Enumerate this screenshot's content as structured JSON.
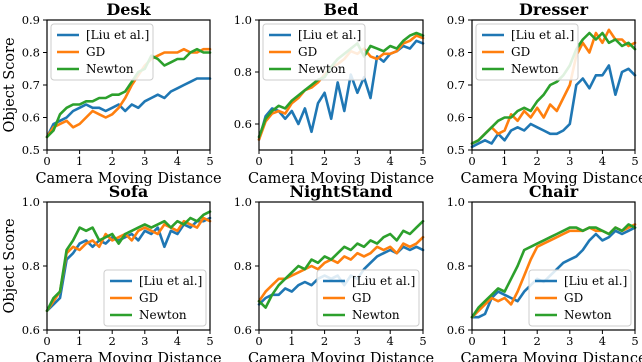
{
  "colors": {
    "liu": "#1f77b4",
    "gd": "#ff7f0e",
    "newton": "#2ca02c"
  },
  "chart_data": [
    {
      "type": "line",
      "title": "Desk",
      "xlabel": "Camera Moving Distance",
      "ylabel": "Object Score",
      "xlim": [
        0,
        5
      ],
      "ylim": [
        0.5,
        0.9
      ],
      "xticks": [
        "0",
        "1",
        "2",
        "3",
        "4",
        "5"
      ],
      "yticks": [
        "0.5",
        "0.6",
        "0.7",
        "0.8",
        "0.9"
      ],
      "legend": "top-left",
      "x": [
        0,
        0.2,
        0.4,
        0.6,
        0.8,
        1.0,
        1.2,
        1.4,
        1.6,
        1.8,
        2.0,
        2.2,
        2.4,
        2.6,
        2.8,
        3.0,
        3.2,
        3.4,
        3.6,
        3.8,
        4.0,
        4.2,
        4.4,
        4.6,
        4.8,
        5.0
      ],
      "series": [
        {
          "name": "[Liu et al.]",
          "values": [
            0.54,
            0.58,
            0.59,
            0.6,
            0.62,
            0.63,
            0.64,
            0.63,
            0.63,
            0.62,
            0.63,
            0.64,
            0.62,
            0.64,
            0.63,
            0.65,
            0.66,
            0.67,
            0.66,
            0.68,
            0.69,
            0.7,
            0.71,
            0.72,
            0.72,
            0.72
          ]
        },
        {
          "name": "GD",
          "values": [
            0.54,
            0.57,
            0.58,
            0.59,
            0.57,
            0.58,
            0.6,
            0.62,
            0.61,
            0.6,
            0.61,
            0.63,
            0.66,
            0.7,
            0.73,
            0.76,
            0.78,
            0.79,
            0.8,
            0.8,
            0.8,
            0.81,
            0.8,
            0.8,
            0.81,
            0.81
          ]
        },
        {
          "name": "Newton",
          "values": [
            0.54,
            0.56,
            0.61,
            0.63,
            0.64,
            0.64,
            0.65,
            0.65,
            0.66,
            0.66,
            0.67,
            0.67,
            0.68,
            0.71,
            0.74,
            0.75,
            0.79,
            0.78,
            0.76,
            0.77,
            0.78,
            0.78,
            0.8,
            0.81,
            0.8,
            0.8
          ]
        }
      ]
    },
    {
      "type": "line",
      "title": "Bed",
      "xlabel": "Camera Moving Distance",
      "ylabel": "",
      "xlim": [
        0,
        5
      ],
      "ylim": [
        0.5,
        1.0
      ],
      "xticks": [
        "0",
        "1",
        "2",
        "3",
        "4",
        "5"
      ],
      "yticks": [
        "0.6",
        "0.8",
        "1.0"
      ],
      "legend": "top-left",
      "x": [
        0,
        0.2,
        0.4,
        0.6,
        0.8,
        1.0,
        1.2,
        1.4,
        1.6,
        1.8,
        2.0,
        2.2,
        2.4,
        2.6,
        2.8,
        3.0,
        3.2,
        3.4,
        3.6,
        3.8,
        4.0,
        4.2,
        4.4,
        4.6,
        4.8,
        5.0
      ],
      "series": [
        {
          "name": "[Liu et al.]",
          "values": [
            0.54,
            0.63,
            0.66,
            0.65,
            0.62,
            0.65,
            0.6,
            0.66,
            0.57,
            0.68,
            0.72,
            0.62,
            0.76,
            0.65,
            0.79,
            0.72,
            0.78,
            0.7,
            0.86,
            0.84,
            0.87,
            0.88,
            0.9,
            0.89,
            0.92,
            0.91
          ]
        },
        {
          "name": "GD",
          "values": [
            0.54,
            0.61,
            0.64,
            0.65,
            0.64,
            0.68,
            0.7,
            0.73,
            0.74,
            0.76,
            0.79,
            0.82,
            0.83,
            0.85,
            0.88,
            0.87,
            0.89,
            0.86,
            0.85,
            0.87,
            0.87,
            0.88,
            0.91,
            0.92,
            0.94,
            0.93
          ]
        },
        {
          "name": "Newton",
          "values": [
            0.55,
            0.62,
            0.65,
            0.67,
            0.66,
            0.69,
            0.71,
            0.73,
            0.75,
            0.77,
            0.78,
            0.82,
            0.85,
            0.87,
            0.89,
            0.91,
            0.86,
            0.9,
            0.89,
            0.88,
            0.9,
            0.89,
            0.92,
            0.94,
            0.95,
            0.94
          ]
        }
      ]
    },
    {
      "type": "line",
      "title": "Dresser",
      "xlabel": "Camera Moving Distance",
      "ylabel": "",
      "xlim": [
        0,
        5
      ],
      "ylim": [
        0.5,
        0.9
      ],
      "xticks": [
        "0",
        "1",
        "2",
        "3",
        "4",
        "5"
      ],
      "yticks": [
        "0.5",
        "0.6",
        "0.7",
        "0.8",
        "0.9"
      ],
      "legend": "top-left",
      "x": [
        0,
        0.2,
        0.4,
        0.6,
        0.8,
        1.0,
        1.2,
        1.4,
        1.6,
        1.8,
        2.0,
        2.2,
        2.4,
        2.6,
        2.8,
        3.0,
        3.2,
        3.4,
        3.6,
        3.8,
        4.0,
        4.2,
        4.4,
        4.6,
        4.8,
        5.0
      ],
      "series": [
        {
          "name": "[Liu et al.]",
          "values": [
            0.51,
            0.52,
            0.53,
            0.52,
            0.55,
            0.53,
            0.56,
            0.57,
            0.56,
            0.58,
            0.57,
            0.56,
            0.55,
            0.55,
            0.56,
            0.58,
            0.7,
            0.72,
            0.69,
            0.73,
            0.73,
            0.76,
            0.67,
            0.74,
            0.75,
            0.73
          ]
        },
        {
          "name": "GD",
          "values": [
            0.52,
            0.53,
            0.55,
            0.57,
            0.55,
            0.56,
            0.61,
            0.59,
            0.62,
            0.6,
            0.63,
            0.6,
            0.64,
            0.62,
            0.66,
            0.7,
            0.79,
            0.83,
            0.8,
            0.86,
            0.83,
            0.87,
            0.84,
            0.84,
            0.82,
            0.83
          ]
        },
        {
          "name": "Newton",
          "values": [
            0.52,
            0.53,
            0.55,
            0.57,
            0.59,
            0.6,
            0.6,
            0.62,
            0.63,
            0.62,
            0.65,
            0.67,
            0.7,
            0.71,
            0.73,
            0.76,
            0.81,
            0.84,
            0.86,
            0.84,
            0.86,
            0.83,
            0.84,
            0.82,
            0.83,
            0.81
          ]
        }
      ]
    },
    {
      "type": "line",
      "title": "Sofa",
      "xlabel": "Camera Moving Distance",
      "ylabel": "Object Score",
      "xlim": [
        0,
        5
      ],
      "ylim": [
        0.6,
        1.0
      ],
      "xticks": [
        "0",
        "1",
        "2",
        "3",
        "4",
        "5"
      ],
      "yticks": [
        "0.6",
        "0.8",
        "1.0"
      ],
      "legend": "bottom-right",
      "x": [
        0,
        0.2,
        0.4,
        0.6,
        0.8,
        1.0,
        1.2,
        1.4,
        1.6,
        1.8,
        2.0,
        2.2,
        2.4,
        2.6,
        2.8,
        3.0,
        3.2,
        3.4,
        3.6,
        3.8,
        4.0,
        4.2,
        4.4,
        4.6,
        4.8,
        5.0
      ],
      "series": [
        {
          "name": "[Liu et al.]",
          "values": [
            0.66,
            0.68,
            0.7,
            0.82,
            0.84,
            0.87,
            0.88,
            0.86,
            0.88,
            0.87,
            0.89,
            0.88,
            0.89,
            0.9,
            0.88,
            0.91,
            0.9,
            0.92,
            0.86,
            0.91,
            0.9,
            0.93,
            0.92,
            0.94,
            0.94,
            0.95
          ]
        },
        {
          "name": "GD",
          "values": [
            0.66,
            0.69,
            0.72,
            0.84,
            0.86,
            0.85,
            0.87,
            0.88,
            0.86,
            0.9,
            0.88,
            0.89,
            0.9,
            0.88,
            0.91,
            0.92,
            0.91,
            0.9,
            0.93,
            0.92,
            0.91,
            0.94,
            0.93,
            0.92,
            0.95,
            0.94
          ]
        },
        {
          "name": "Newton",
          "values": [
            0.66,
            0.7,
            0.72,
            0.85,
            0.88,
            0.92,
            0.91,
            0.92,
            0.88,
            0.89,
            0.9,
            0.87,
            0.9,
            0.91,
            0.92,
            0.93,
            0.92,
            0.93,
            0.94,
            0.92,
            0.94,
            0.93,
            0.95,
            0.94,
            0.96,
            0.97
          ]
        }
      ]
    },
    {
      "type": "line",
      "title": "NightStand",
      "xlabel": "Camera Moving Distance",
      "ylabel": "",
      "xlim": [
        0,
        5
      ],
      "ylim": [
        0.6,
        1.0
      ],
      "xticks": [
        "0",
        "1",
        "2",
        "3",
        "4",
        "5"
      ],
      "yticks": [
        "0.6",
        "0.8",
        "1.0"
      ],
      "legend": "bottom-right",
      "x": [
        0,
        0.2,
        0.4,
        0.6,
        0.8,
        1.0,
        1.2,
        1.4,
        1.6,
        1.8,
        2.0,
        2.2,
        2.4,
        2.6,
        2.8,
        3.0,
        3.2,
        3.4,
        3.6,
        3.8,
        4.0,
        4.2,
        4.4,
        4.6,
        4.8,
        5.0
      ],
      "series": [
        {
          "name": "[Liu et al.]",
          "values": [
            0.68,
            0.7,
            0.71,
            0.71,
            0.73,
            0.72,
            0.74,
            0.75,
            0.74,
            0.76,
            0.77,
            0.76,
            0.77,
            0.74,
            0.77,
            0.76,
            0.79,
            0.81,
            0.83,
            0.84,
            0.85,
            0.84,
            0.86,
            0.85,
            0.86,
            0.85
          ]
        },
        {
          "name": "GD",
          "values": [
            0.69,
            0.72,
            0.74,
            0.76,
            0.76,
            0.77,
            0.78,
            0.79,
            0.8,
            0.79,
            0.81,
            0.82,
            0.81,
            0.83,
            0.82,
            0.84,
            0.83,
            0.84,
            0.86,
            0.85,
            0.86,
            0.84,
            0.87,
            0.86,
            0.87,
            0.89
          ]
        },
        {
          "name": "Newton",
          "values": [
            0.69,
            0.67,
            0.71,
            0.74,
            0.76,
            0.78,
            0.8,
            0.79,
            0.82,
            0.81,
            0.83,
            0.82,
            0.84,
            0.86,
            0.85,
            0.87,
            0.86,
            0.88,
            0.87,
            0.89,
            0.9,
            0.88,
            0.91,
            0.9,
            0.92,
            0.94
          ]
        }
      ]
    },
    {
      "type": "line",
      "title": "Chair",
      "xlabel": "Camera Moving Distance",
      "ylabel": "",
      "xlim": [
        0,
        5
      ],
      "ylim": [
        0.6,
        1.0
      ],
      "xticks": [
        "0",
        "1",
        "2",
        "3",
        "4",
        "5"
      ],
      "yticks": [
        "0.6",
        "0.8",
        "1.0"
      ],
      "legend": "bottom-right",
      "x": [
        0,
        0.2,
        0.4,
        0.6,
        0.8,
        1.0,
        1.2,
        1.4,
        1.6,
        1.8,
        2.0,
        2.2,
        2.4,
        2.6,
        2.8,
        3.0,
        3.2,
        3.4,
        3.6,
        3.8,
        4.0,
        4.2,
        4.4,
        4.6,
        4.8,
        5.0
      ],
      "series": [
        {
          "name": "[Liu et al.]",
          "values": [
            0.64,
            0.64,
            0.65,
            0.7,
            0.72,
            0.71,
            0.7,
            0.69,
            0.72,
            0.74,
            0.76,
            0.75,
            0.77,
            0.79,
            0.81,
            0.82,
            0.83,
            0.85,
            0.88,
            0.9,
            0.88,
            0.89,
            0.91,
            0.9,
            0.91,
            0.92
          ]
        },
        {
          "name": "GD",
          "values": [
            0.64,
            0.66,
            0.68,
            0.7,
            0.69,
            0.7,
            0.68,
            0.72,
            0.77,
            0.82,
            0.86,
            0.87,
            0.88,
            0.89,
            0.9,
            0.91,
            0.91,
            0.91,
            0.92,
            0.91,
            0.91,
            0.9,
            0.92,
            0.91,
            0.92,
            0.93
          ]
        },
        {
          "name": "Newton",
          "values": [
            0.64,
            0.67,
            0.69,
            0.71,
            0.73,
            0.72,
            0.76,
            0.8,
            0.85,
            0.86,
            0.87,
            0.88,
            0.89,
            0.9,
            0.91,
            0.92,
            0.92,
            0.91,
            0.92,
            0.92,
            0.91,
            0.9,
            0.92,
            0.91,
            0.93,
            0.92
          ]
        }
      ]
    }
  ]
}
